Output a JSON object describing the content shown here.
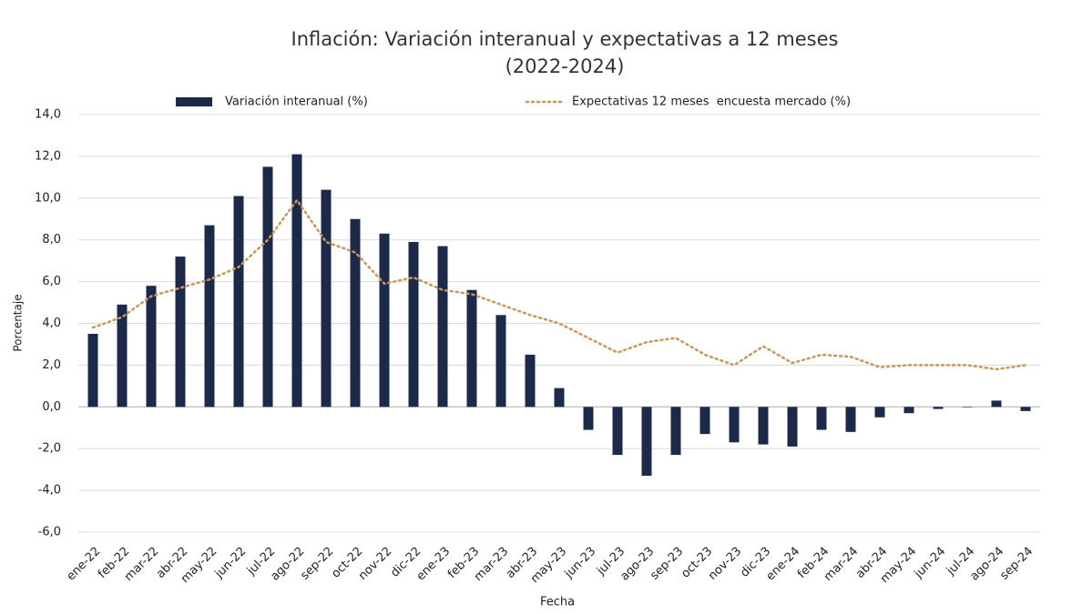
{
  "chart_data": {
    "type": "bar_line",
    "title": "Inflación: Variación interanual y expectativas a 12 meses",
    "subtitle": "(2022-2024)",
    "x_label": "Fecha",
    "y_label": "Porcentaje",
    "categories": [
      "ene-22",
      "feb-22",
      "mar-22",
      "abr-22",
      "may-22",
      "jun-22",
      "jul-22",
      "ago-22",
      "sep-22",
      "oct-22",
      "nov-22",
      "dic-22",
      "ene-23",
      "feb-23",
      "mar-23",
      "abr-23",
      "may-23",
      "jun-23",
      "jul-23",
      "ago-23",
      "sep-23",
      "oct-23",
      "nov-23",
      "dic-23",
      "ene-24",
      "feb-24",
      "mar-24",
      "abr-24",
      "may-24",
      "jun-24",
      "jul-24",
      "ago-24",
      "sep-24"
    ],
    "series": [
      {
        "name": "Variación interanual (%)",
        "type": "bar",
        "color": "#1b2a4a",
        "values": [
          3.5,
          4.9,
          5.8,
          7.2,
          8.7,
          10.1,
          11.5,
          12.1,
          10.4,
          9.0,
          8.3,
          7.9,
          7.7,
          5.6,
          4.4,
          2.5,
          0.9,
          -1.1,
          -2.3,
          -3.3,
          -2.3,
          -1.3,
          -1.7,
          -1.8,
          -1.9,
          -1.1,
          -1.2,
          -0.5,
          -0.3,
          -0.1,
          0.0,
          0.3,
          -0.2
        ]
      },
      {
        "name": "Expectativas 12 meses  encuesta mercado (%)",
        "type": "line",
        "color": "#c9975a",
        "values": [
          3.8,
          4.3,
          5.3,
          5.7,
          6.1,
          6.7,
          8.0,
          9.9,
          7.9,
          7.4,
          5.9,
          6.2,
          5.6,
          5.4,
          4.9,
          4.4,
          4.0,
          3.3,
          2.6,
          3.1,
          3.3,
          2.5,
          2.0,
          2.9,
          2.1,
          2.5,
          2.4,
          1.9,
          2.0,
          2.0,
          2.0,
          1.8,
          2.0
        ]
      }
    ],
    "ylim": [
      -6,
      14
    ],
    "yticks": [
      {
        "value": -6,
        "label": "-6,0"
      },
      {
        "value": -4,
        "label": "-4,0"
      },
      {
        "value": -2,
        "label": "-2,0"
      },
      {
        "value": 0,
        "label": "0,0"
      },
      {
        "value": 2,
        "label": "2,0"
      },
      {
        "value": 4,
        "label": "4,0"
      },
      {
        "value": 6,
        "label": "6,0"
      },
      {
        "value": 8,
        "label": "8,0"
      },
      {
        "value": 10,
        "label": "10,0"
      },
      {
        "value": 12,
        "label": "12,0"
      },
      {
        "value": 14,
        "label": "14,0"
      }
    ],
    "grid": true,
    "legend": "top"
  }
}
